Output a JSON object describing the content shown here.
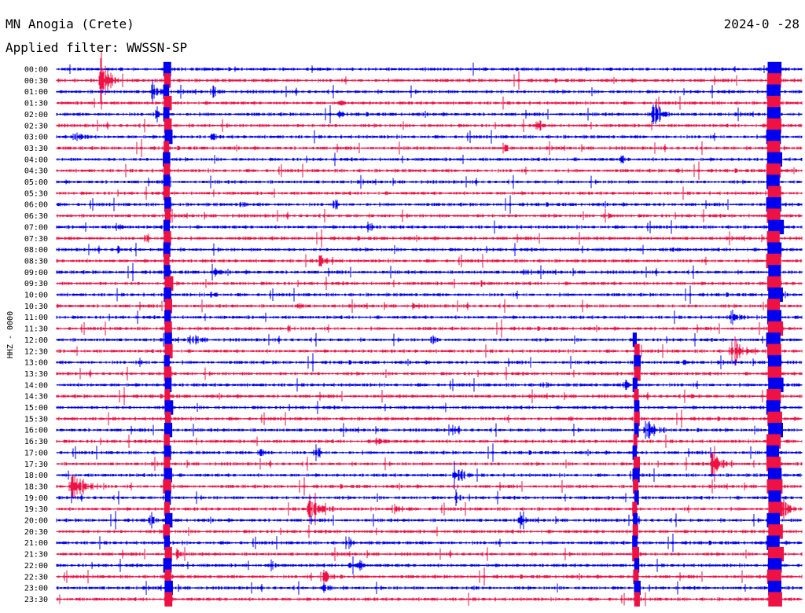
{
  "chart_data": {
    "type": "line",
    "title": "MN Anogia (Crete)",
    "subtitle": "Applied filter: WWSSN-SP",
    "date": "2024-0 -28",
    "ylabel": "HHZ - 0000",
    "traces_start": [
      "00:00",
      "00:30",
      "01:00",
      "01:30",
      "02:00",
      "02:30",
      "03:00",
      "03:30",
      "04:00",
      "04:30",
      "05:00",
      "05:30",
      "06:00",
      "06:30",
      "07:00",
      "07:30",
      "08:00",
      "08:30",
      "09:00",
      "09:30",
      "10:00",
      "10:30",
      "11:00",
      "11:30",
      "12:00",
      "12:30",
      "13:00",
      "13:30",
      "14:00",
      "14:30",
      "15:00",
      "15:30",
      "16:00",
      "16:30",
      "17:00",
      "17:30",
      "18:00",
      "18:30",
      "19:00",
      "19:30",
      "20:00",
      "20:30",
      "21:00",
      "21:30",
      "22:00",
      "22:30",
      "23:00",
      "23:30"
    ],
    "trace_colors": [
      "#0000ee",
      "#ee1144"
    ],
    "x": [
      0,
      30
    ],
    "xlabel": "",
    "grid": false
  }
}
